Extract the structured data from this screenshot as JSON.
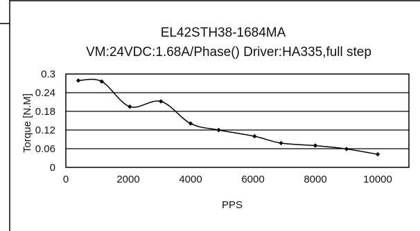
{
  "chart_data": {
    "type": "line",
    "title": "EL42STH38-1684MA",
    "subtitle": "VM:24VDC:1.68A/Phase() Driver:HA335,full step",
    "xlabel": "PPS",
    "ylabel": "Torque [N.M]",
    "xlim": [
      0,
      11000
    ],
    "ylim": [
      0,
      0.3
    ],
    "x_ticks": [
      0,
      2000,
      4000,
      6000,
      8000,
      10000
    ],
    "x_tick_labels": [
      "0",
      "2000",
      "4000",
      "6000",
      "8000",
      "10000"
    ],
    "y_ticks": [
      0,
      0.06,
      0.12,
      0.18,
      0.24,
      0.3
    ],
    "y_tick_labels": [
      "0",
      "0.06",
      "0.12",
      "0.18",
      "0.24",
      "0.3"
    ],
    "grid": "horizontal",
    "legend": "none",
    "series": [
      {
        "color": "#000000",
        "points": [
          [
            400,
            0.279
          ],
          [
            1150,
            0.276
          ],
          [
            2050,
            0.195
          ],
          [
            3050,
            0.212
          ],
          [
            4000,
            0.141
          ],
          [
            4900,
            0.12
          ],
          [
            6050,
            0.1
          ],
          [
            6900,
            0.078
          ],
          [
            8000,
            0.07
          ],
          [
            9000,
            0.059
          ],
          [
            10000,
            0.042
          ]
        ]
      }
    ]
  }
}
